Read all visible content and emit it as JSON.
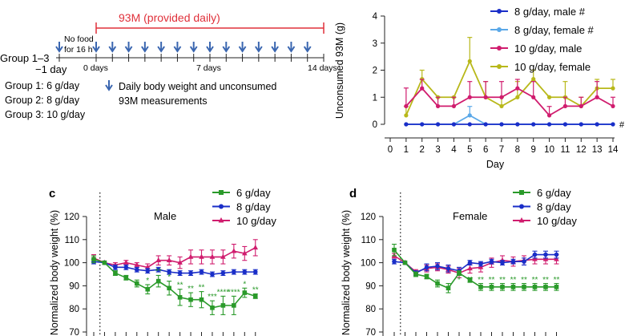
{
  "schematic": {
    "regimen_label": "93M (provided daily)",
    "groups_label": "Group 1–3",
    "no_food_line1": "No food",
    "no_food_line2": "for 16 h",
    "day_neg1": "−1 day",
    "day_0": "0 days",
    "day_7": "7 days",
    "day_14": "14 days",
    "group1": "Group 1:  6 g/day",
    "group2": "Group 2:  8 g/day",
    "group3": "Group 3:  10 g/day",
    "arrow_note_line1": "Daily body weight and unconsumed",
    "arrow_note_line2": "93M measurements",
    "colors": {
      "regimen": "#e0303a",
      "arrow": "#3a66b0"
    }
  },
  "chart_data": [
    {
      "id": "unconsumed",
      "type": "line",
      "title": "",
      "xlabel": "Day",
      "ylabel": "Unconsumed 93M (g)",
      "xlim": [
        0,
        14
      ],
      "ylim": [
        0,
        4
      ],
      "xticks": [
        "0",
        "1",
        "2",
        "3",
        "4",
        "5",
        "6",
        "7",
        "8",
        "9",
        "10",
        "11",
        "12",
        "13",
        "14"
      ],
      "yticks": [
        "0",
        "1",
        "2",
        "3",
        "4"
      ],
      "x": [
        1,
        2,
        3,
        4,
        5,
        6,
        7,
        8,
        9,
        10,
        11,
        12,
        13,
        14
      ],
      "series": [
        {
          "name": "8 g/day, male",
          "color": "#1a2ec8",
          "marker": "circle",
          "values": [
            0,
            0,
            0,
            0,
            0,
            0,
            0,
            0,
            0,
            0,
            0,
            0,
            0,
            0
          ],
          "err": [
            0,
            0,
            0,
            0,
            0,
            0,
            0,
            0,
            0,
            0,
            0,
            0,
            0,
            0
          ],
          "mark": "#"
        },
        {
          "name": "8 g/day, female",
          "color": "#5aa8e8",
          "marker": "circle",
          "values": [
            0,
            0,
            0,
            0,
            0.33,
            0,
            0,
            0,
            0,
            0,
            0,
            0,
            0,
            0
          ],
          "err": [
            0,
            0,
            0,
            0,
            0.33,
            0,
            0,
            0,
            0,
            0,
            0,
            0,
            0,
            0
          ],
          "mark": "#"
        },
        {
          "name": "10 g/day, male",
          "color": "#d01c6e",
          "marker": "circle",
          "values": [
            0.67,
            1.33,
            0.67,
            0.67,
            1.0,
            1.0,
            1.0,
            1.33,
            1.0,
            0.33,
            0.67,
            0.67,
            1.0,
            0.67
          ],
          "err": [
            0.67,
            0.33,
            0.33,
            0.33,
            0.58,
            0.58,
            0.58,
            0.33,
            0.58,
            0.33,
            0.33,
            0.33,
            0.58,
            0.33
          ]
        },
        {
          "name": "10 g/day, female",
          "color": "#b8b81a",
          "marker": "circle",
          "values": [
            0.33,
            1.67,
            1.0,
            1.0,
            2.33,
            1.0,
            0.67,
            1.0,
            1.67,
            1.0,
            1.0,
            0.67,
            1.33,
            1.33
          ],
          "err": [
            0.33,
            0.33,
            0.0,
            0.0,
            0.88,
            0.58,
            0.33,
            0.58,
            0.33,
            0.0,
            0.58,
            0.33,
            0.33,
            0.33
          ]
        }
      ],
      "annotation": "#"
    },
    {
      "id": "male",
      "panel_label": "c",
      "type": "line",
      "title": "Male",
      "ylabel": "Normalized body weight (%)",
      "ylim": [
        70,
        120
      ],
      "yticks": [
        "70",
        "80",
        "90",
        "100",
        "110",
        "120"
      ],
      "x": [
        -1,
        0,
        1,
        2,
        3,
        4,
        5,
        6,
        7,
        8,
        9,
        10,
        11,
        12,
        13,
        14
      ],
      "series": [
        {
          "name": "6 g/day",
          "color": "#2a9a2a",
          "marker": "square",
          "values": [
            101.5,
            100,
            95.5,
            93.5,
            91,
            88.5,
            92,
            89,
            85,
            84,
            84,
            80.5,
            81.5,
            81.5,
            87,
            85.5
          ],
          "err": [
            1.5,
            0,
            1,
            1,
            1.5,
            2,
            2.5,
            3,
            3.5,
            3,
            3.5,
            3,
            4,
            4,
            2,
            1
          ]
        },
        {
          "name": "8 g/day",
          "color": "#1a2ec8",
          "marker": "circle",
          "values": [
            100.5,
            100,
            98,
            98,
            97,
            96.5,
            97,
            96,
            95.5,
            95.5,
            96,
            95,
            95.5,
            96,
            96,
            96
          ],
          "err": [
            1,
            0,
            1,
            1,
            1,
            1,
            1,
            1,
            1,
            1,
            1,
            1,
            1,
            1,
            1,
            1
          ]
        },
        {
          "name": "10 g/day",
          "color": "#d01c6e",
          "marker": "triangle",
          "values": [
            102,
            100,
            99,
            100,
            99,
            98,
            101,
            101,
            100,
            102.5,
            102.5,
            102.5,
            102.5,
            105,
            104,
            106.5
          ],
          "err": [
            1.5,
            0,
            1,
            1,
            1,
            1.5,
            2,
            2,
            2.5,
            3,
            3,
            3,
            3,
            3,
            3,
            3.5
          ]
        }
      ],
      "sig_marks": [
        "*",
        "**",
        "*",
        "**",
        "**",
        "**",
        "***",
        "****",
        "****",
        "*",
        "**"
      ]
    },
    {
      "id": "female",
      "panel_label": "d",
      "type": "line",
      "title": "Female",
      "ylabel": "Normalized body weight (%)",
      "ylim": [
        70,
        120
      ],
      "yticks": [
        "70",
        "80",
        "90",
        "100",
        "110",
        "120"
      ],
      "x": [
        -1,
        0,
        1,
        2,
        3,
        4,
        5,
        6,
        7,
        8,
        9,
        10,
        11,
        12,
        13,
        14
      ],
      "series": [
        {
          "name": "6 g/day",
          "color": "#2a9a2a",
          "marker": "square",
          "values": [
            105.5,
            100,
            95,
            94,
            91,
            89,
            95.5,
            92.5,
            89.5,
            89.5,
            89.5,
            89.5,
            89.5,
            89.5,
            89.5,
            89.5
          ],
          "err": [
            2.5,
            0,
            1,
            1,
            1.5,
            2,
            1,
            1,
            1.5,
            1.5,
            1.5,
            1.5,
            1.5,
            1.5,
            1.5,
            1.5
          ]
        },
        {
          "name": "8 g/day",
          "color": "#1a2ec8",
          "marker": "circle",
          "values": [
            100.5,
            100,
            95.5,
            98,
            98.5,
            97.5,
            96.5,
            100,
            99.5,
            100.5,
            100,
            100.5,
            100.5,
            103.5,
            103.5,
            103.5
          ],
          "err": [
            1,
            0,
            1,
            1.5,
            1.5,
            1.5,
            1.5,
            1,
            1,
            1,
            1,
            1,
            1.5,
            1.5,
            1.5,
            1.5
          ]
        },
        {
          "name": "10 g/day",
          "color": "#d01c6e",
          "marker": "triangle",
          "values": [
            103,
            100,
            96,
            97.5,
            98,
            97,
            95.5,
            97.5,
            98,
            100,
            101,
            100.5,
            101,
            101.5,
            101.5,
            101.5
          ],
          "err": [
            1,
            0,
            1,
            1.5,
            1.5,
            1.5,
            2,
            2,
            2,
            2,
            2,
            2,
            2,
            2,
            2,
            2
          ]
        }
      ],
      "sig_marks": [
        "*",
        "**",
        "**",
        "**",
        "**",
        "**",
        "**",
        "**",
        "**",
        "**"
      ]
    }
  ]
}
